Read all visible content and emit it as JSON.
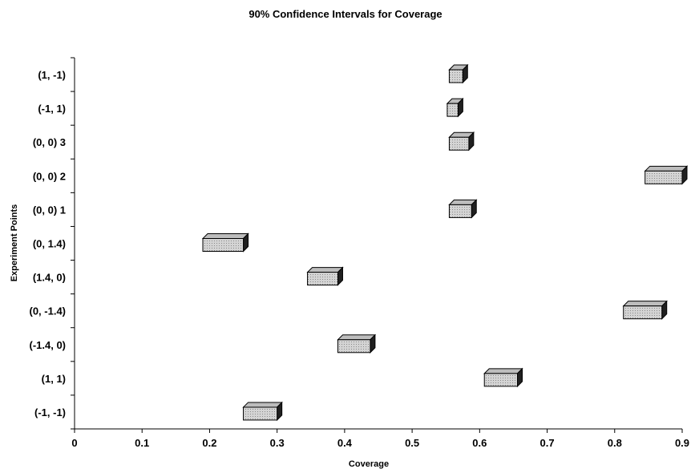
{
  "chart_data": {
    "type": "bar",
    "orientation": "horizontal-interval",
    "title": "90% Confidence Intervals for Coverage",
    "xlabel": "Coverage",
    "ylabel": "Experiment Points",
    "xlim": [
      0,
      0.9
    ],
    "x_ticks": [
      "0",
      "0.1",
      "0.2",
      "0.3",
      "0.4",
      "0.5",
      "0.6",
      "0.7",
      "0.8",
      "0.9"
    ],
    "grid": false,
    "bar_color": "#c8c8c8",
    "categories": [
      "(1, -1)",
      "(-1, 1)",
      "(0, 0) 3",
      "(0, 0) 2",
      "(0, 0) 1",
      "(0, 1.4)",
      "(1.4, 0)",
      "(0, -1.4)",
      "(-1.4, 0)",
      "(1, 1)",
      "(-1, -1)"
    ],
    "intervals": [
      {
        "low": 0.555,
        "high": 0.575
      },
      {
        "low": 0.552,
        "high": 0.568
      },
      {
        "low": 0.555,
        "high": 0.584
      },
      {
        "low": 0.845,
        "high": 0.9
      },
      {
        "low": 0.555,
        "high": 0.588
      },
      {
        "low": 0.19,
        "high": 0.25
      },
      {
        "low": 0.345,
        "high": 0.39
      },
      {
        "low": 0.813,
        "high": 0.87
      },
      {
        "low": 0.39,
        "high": 0.438
      },
      {
        "low": 0.607,
        "high": 0.656
      },
      {
        "low": 0.25,
        "high": 0.3
      }
    ]
  }
}
